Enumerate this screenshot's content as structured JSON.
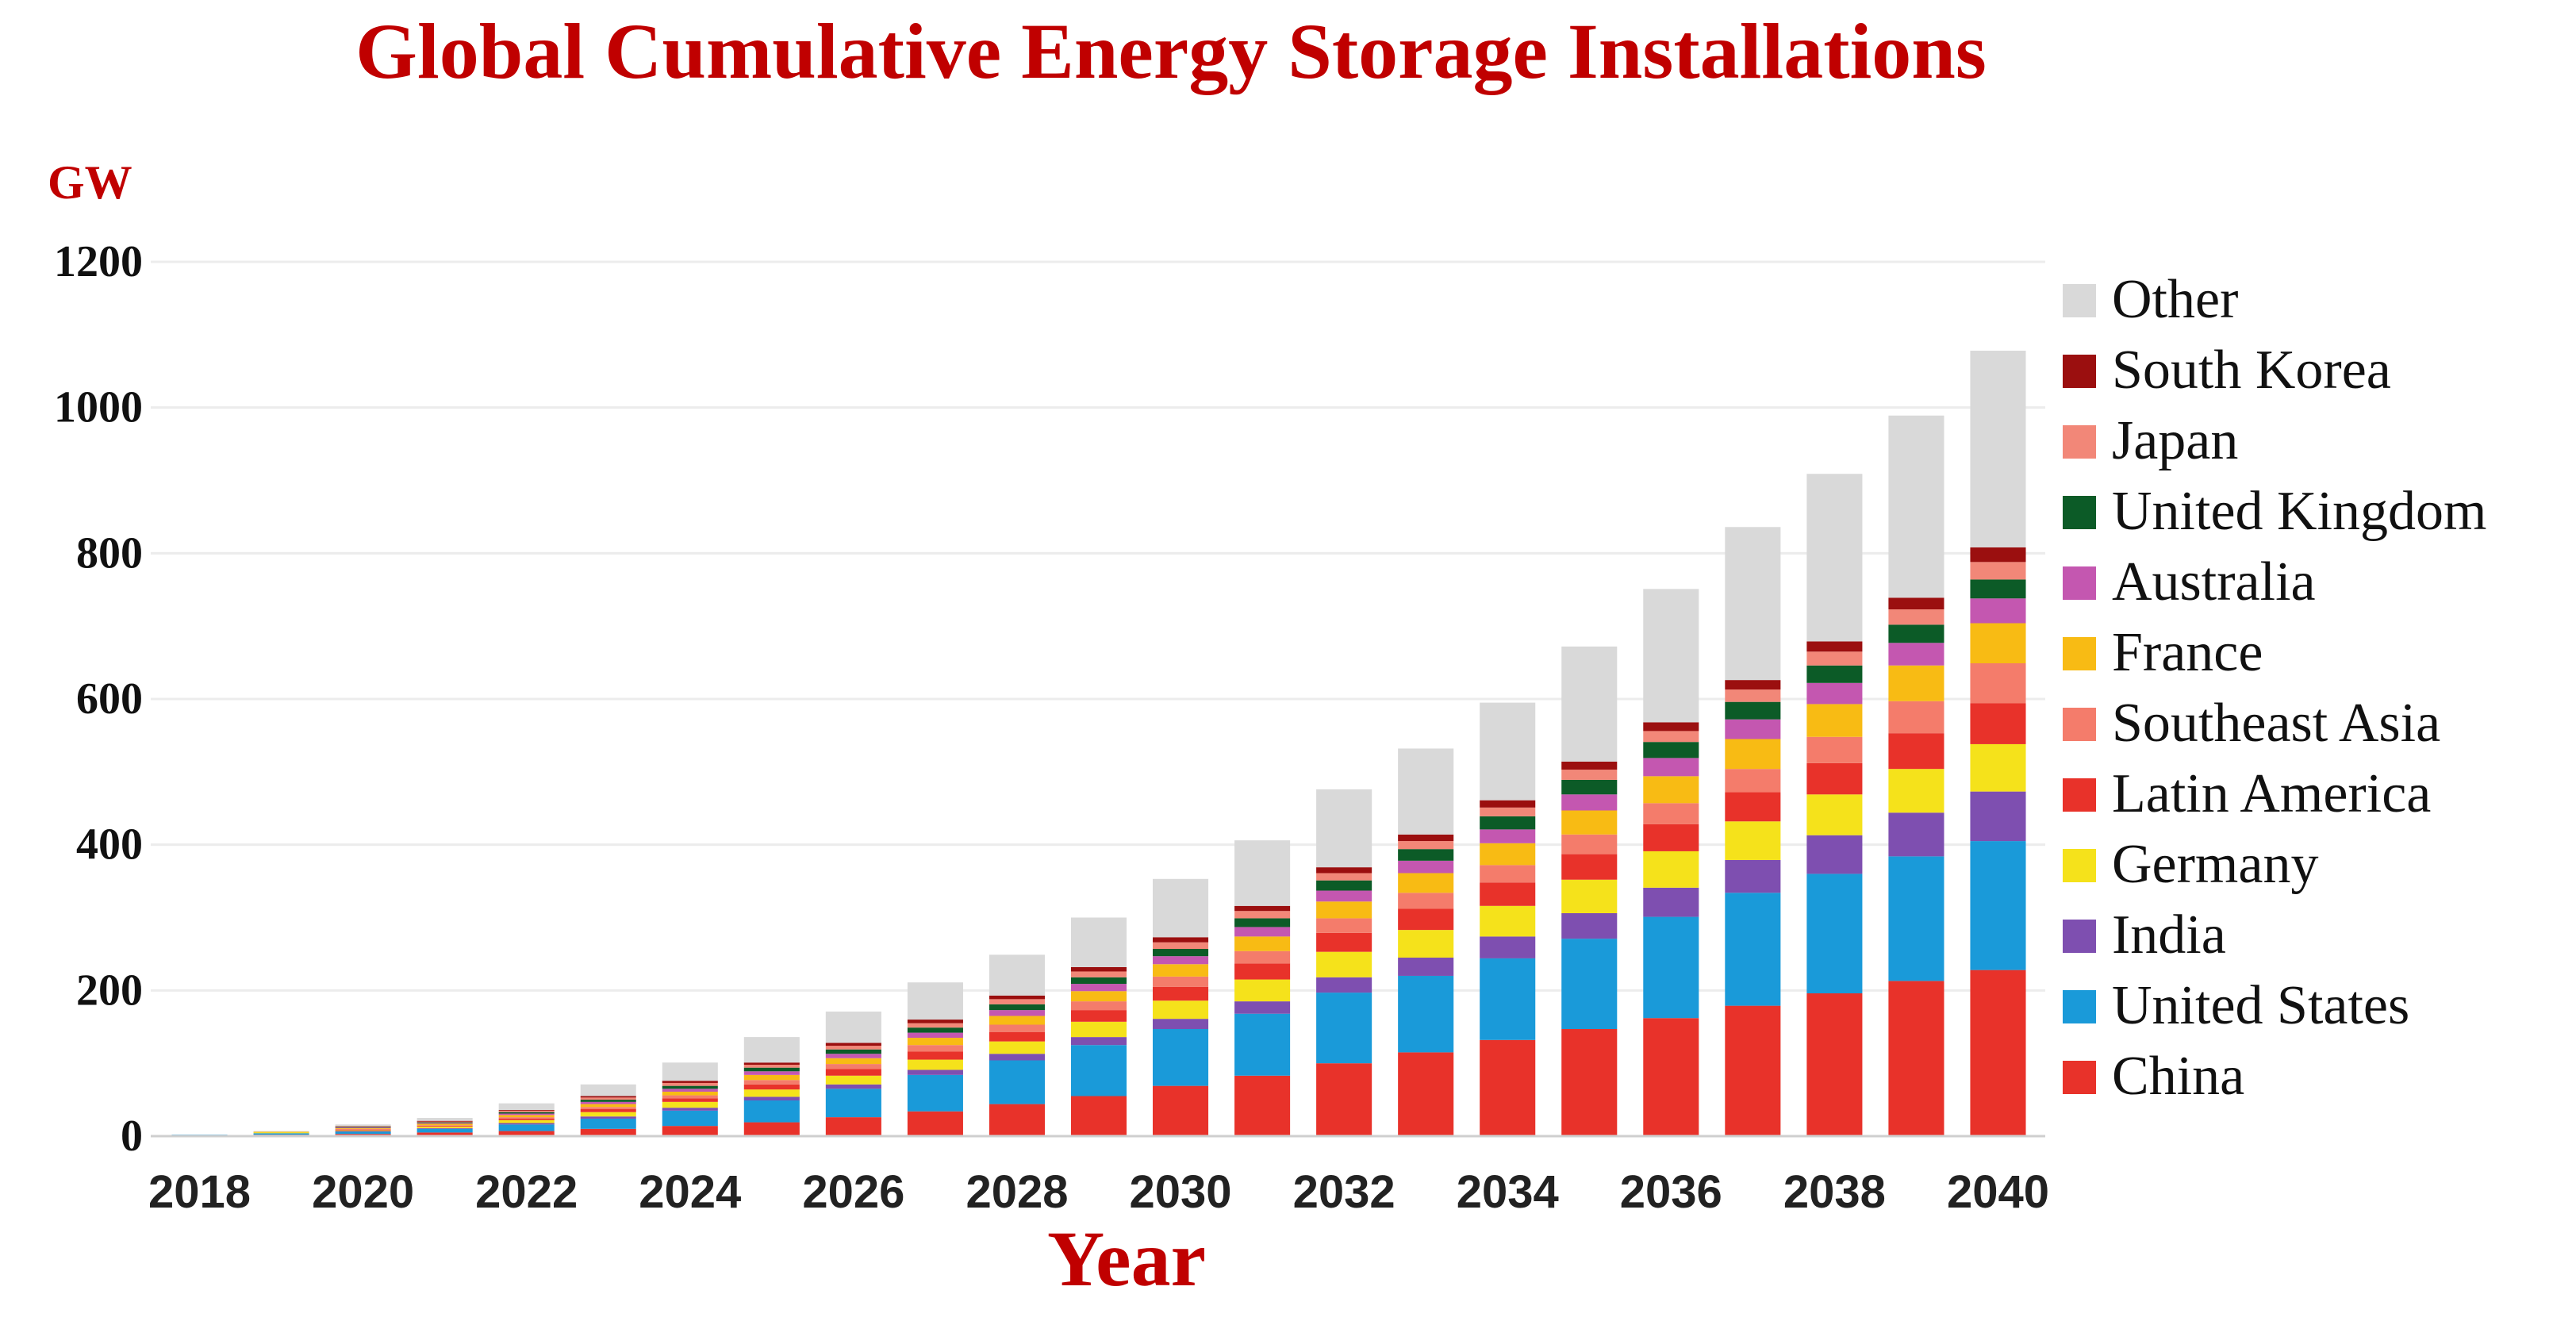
{
  "chart_data": {
    "type": "bar",
    "stacked": true,
    "title": "Global Cumulative Energy Storage Installations",
    "ylabel": "GW",
    "xlabel": "Year",
    "ylim": [
      0,
      1200
    ],
    "yticks": [
      0,
      200,
      400,
      600,
      800,
      1000,
      1200
    ],
    "xtick_labels": [
      "2018",
      "2020",
      "2022",
      "2024",
      "2026",
      "2028",
      "2030",
      "2032",
      "2034",
      "2036",
      "2038",
      "2040"
    ],
    "grid": true,
    "legend_position": "right",
    "categories": [
      "2018",
      "2019",
      "2020",
      "2021",
      "2022",
      "2023",
      "2024",
      "2025",
      "2026",
      "2027",
      "2028",
      "2029",
      "2030",
      "2031",
      "2032",
      "2033",
      "2034",
      "2035",
      "2036",
      "2037",
      "2038",
      "2039",
      "2040"
    ],
    "series": [
      {
        "name": "China",
        "color": "#e8322a",
        "values": [
          1,
          2,
          3,
          5,
          7,
          10,
          14,
          19,
          26,
          34,
          44,
          55,
          69,
          83,
          100,
          115,
          132,
          147,
          162,
          179,
          196,
          213,
          228
        ]
      },
      {
        "name": "United States",
        "color": "#1a9ad9",
        "values": [
          1,
          2,
          3,
          5,
          9,
          14,
          21,
          30,
          39,
          50,
          60,
          70,
          78,
          85,
          97,
          105,
          112,
          124,
          139,
          155,
          164,
          171,
          177
        ]
      },
      {
        "name": "India",
        "color": "#7e4fb0",
        "values": [
          0,
          0,
          1,
          1,
          2,
          3,
          4,
          5,
          6,
          7,
          9,
          11,
          14,
          17,
          21,
          25,
          30,
          35,
          40,
          45,
          53,
          60,
          68
        ]
      },
      {
        "name": "Germany",
        "color": "#f5e21b",
        "values": [
          0,
          1,
          1,
          2,
          4,
          6,
          8,
          10,
          12,
          14,
          17,
          21,
          25,
          30,
          35,
          38,
          42,
          46,
          50,
          53,
          56,
          60,
          65
        ]
      },
      {
        "name": "Latin America",
        "color": "#e8322a",
        "values": [
          0,
          0,
          1,
          1,
          2,
          4,
          5,
          7,
          9,
          11,
          13,
          16,
          19,
          22,
          26,
          29,
          32,
          35,
          37,
          40,
          43,
          49,
          56
        ]
      },
      {
        "name": "Southeast Asia",
        "color": "#f47c6b",
        "values": [
          0,
          0,
          1,
          1,
          2,
          3,
          4,
          6,
          7,
          9,
          10,
          12,
          14,
          17,
          20,
          22,
          24,
          27,
          29,
          32,
          36,
          44,
          55
        ]
      },
      {
        "name": "France",
        "color": "#f8bb14",
        "values": [
          0,
          1,
          1,
          2,
          3,
          4,
          5,
          7,
          8,
          10,
          12,
          14,
          17,
          20,
          23,
          27,
          30,
          33,
          37,
          41,
          45,
          49,
          55
        ]
      },
      {
        "name": "Australia",
        "color": "#c457b0",
        "values": [
          0,
          0,
          1,
          1,
          2,
          3,
          4,
          5,
          6,
          7,
          8,
          10,
          11,
          13,
          15,
          17,
          19,
          22,
          25,
          27,
          29,
          31,
          34
        ]
      },
      {
        "name": "United Kingdom",
        "color": "#0c5b27",
        "values": [
          0,
          0,
          1,
          1,
          2,
          3,
          4,
          5,
          6,
          7,
          8,
          9,
          10,
          12,
          14,
          16,
          18,
          20,
          22,
          24,
          24,
          25,
          26
        ]
      },
      {
        "name": "Japan",
        "color": "#f28778",
        "values": [
          0,
          0,
          1,
          1,
          2,
          3,
          4,
          4,
          5,
          6,
          7,
          8,
          9,
          10,
          10,
          11,
          12,
          14,
          15,
          17,
          19,
          21,
          24
        ]
      },
      {
        "name": "South Korea",
        "color": "#9b0f0f",
        "values": [
          0,
          0,
          0,
          1,
          1,
          2,
          3,
          3,
          4,
          5,
          5,
          6,
          7,
          7,
          8,
          9,
          10,
          11,
          12,
          13,
          14,
          16,
          20
        ]
      },
      {
        "name": "Other",
        "color": "#d9d9d9",
        "values": [
          0,
          1,
          2,
          4,
          9,
          16,
          25,
          35,
          43,
          51,
          56,
          68,
          80,
          90,
          107,
          118,
          134,
          158,
          183,
          210,
          230,
          250,
          270
        ]
      }
    ]
  }
}
